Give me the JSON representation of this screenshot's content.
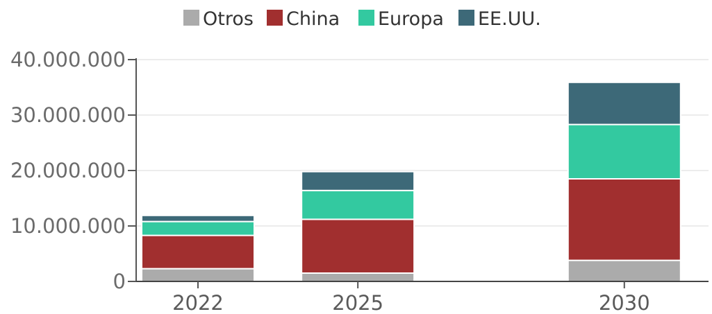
{
  "chart_data": {
    "type": "bar",
    "stacked": true,
    "categories": [
      "2022",
      "2025",
      "2030"
    ],
    "x_positions": [
      2022,
      2025,
      2030
    ],
    "series": [
      {
        "name": "Otros",
        "color": "#ababab",
        "values": [
          2300000,
          1500000,
          3800000
        ]
      },
      {
        "name": "China",
        "color": "#a12f2f",
        "values": [
          6000000,
          9700000,
          14700000
        ]
      },
      {
        "name": "Europa",
        "color": "#33c9a0",
        "values": [
          2500000,
          5200000,
          9800000
        ]
      },
      {
        "name": "EE.UU.",
        "color": "#3d6978",
        "values": [
          1100000,
          3400000,
          7600000
        ]
      }
    ],
    "legend": {
      "position": "top-center",
      "items": [
        "Otros",
        "China",
        "Europa",
        "EE.UU."
      ]
    },
    "ylim": [
      0,
      40000000
    ],
    "yticks": [
      0,
      10000000,
      20000000,
      30000000,
      40000000
    ],
    "ytick_labels": [
      "0",
      "10.000.000",
      "20.000.000",
      "30.000.000",
      "40.000.000"
    ],
    "grid": true,
    "title": "",
    "xlabel": "",
    "ylabel": ""
  }
}
